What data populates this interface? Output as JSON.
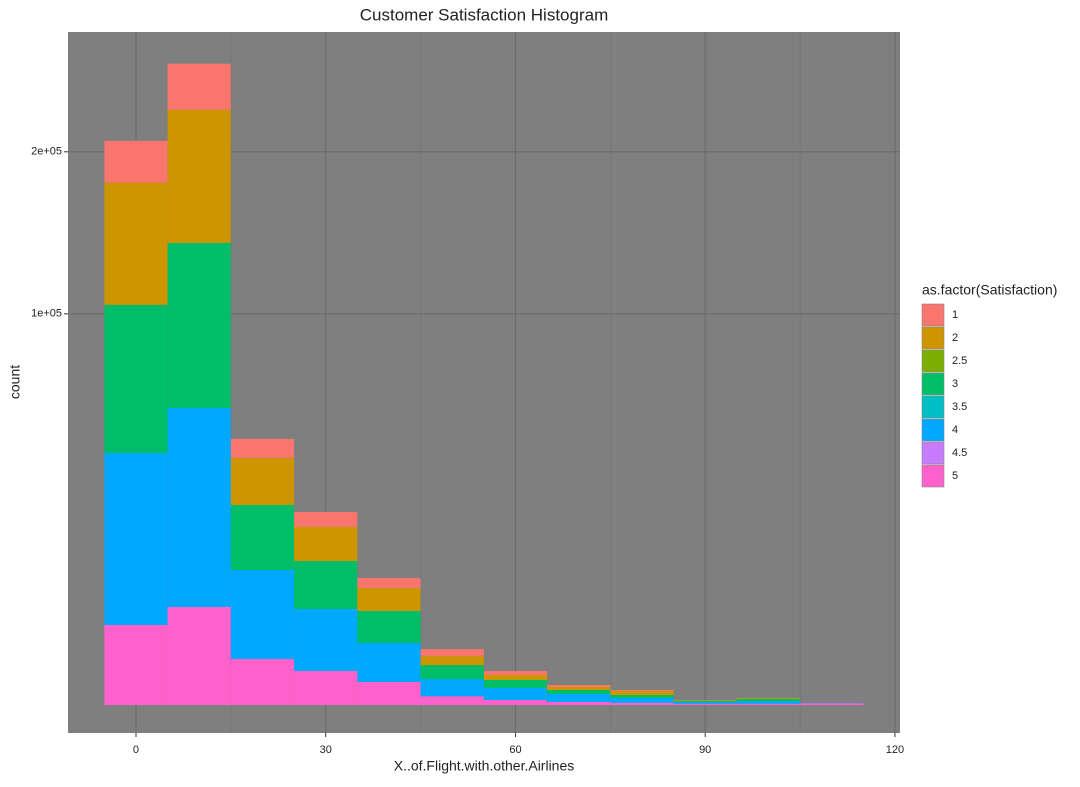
{
  "chart_data": {
    "type": "histogram",
    "title": "Customer Satisfaction Histogram",
    "x_label": "X..of.Flight.with.other.Airlines",
    "y_label": "count",
    "legend_title": "as.factor(Satisfaction)",
    "legend_position": "right",
    "y_scale": "sqrt",
    "stacked": true,
    "grid": true,
    "bins": [
      -5,
      5,
      15,
      25,
      35,
      45,
      55,
      65,
      75,
      85,
      95,
      105,
      115
    ],
    "xlim": [
      -10.75,
      120.8
    ],
    "xticks": [
      0,
      30,
      60,
      90,
      120
    ],
    "ylim": [
      0,
      296000
    ],
    "yticks": [
      {
        "value": 100000,
        "label": "1e+05"
      },
      {
        "value": 200000,
        "label": "2e+05"
      }
    ],
    "series": [
      {
        "name": "1",
        "color": "#F8766D",
        "values": [
          29780,
          37190,
          6380,
          3640,
          1600,
          480,
          167,
          50,
          19,
          0,
          0,
          0
        ]
      },
      {
        "name": "2",
        "color": "#CD9600",
        "values": [
          73600,
          91960,
          13740,
          7160,
          3170,
          520,
          180,
          65,
          63,
          5,
          9,
          0
        ]
      },
      {
        "name": "2.5",
        "color": "#7CAE00",
        "values": [
          0,
          0,
          0,
          0,
          0,
          0,
          0,
          0,
          0,
          0,
          0,
          0
        ]
      },
      {
        "name": "3",
        "color": "#00BE67",
        "values": [
          63120,
          81890,
          14240,
          7530,
          3270,
          600,
          220,
          68,
          33,
          5,
          14,
          0
        ]
      },
      {
        "name": "3.5",
        "color": "#00BFC4",
        "values": [
          0,
          0,
          0,
          0,
          0,
          0,
          0,
          0,
          0,
          0,
          0,
          0
        ]
      },
      {
        "name": "4",
        "color": "#00A9FF",
        "values": [
          37350,
          51410,
          10540,
          5270,
          2160,
          390,
          173,
          73,
          29,
          5,
          9,
          1
        ]
      },
      {
        "name": "4.5",
        "color": "#C77CFF",
        "values": [
          0,
          0,
          0,
          0,
          0,
          0,
          0,
          0,
          0,
          0,
          0,
          0
        ]
      },
      {
        "name": "5",
        "color": "#FF61CC",
        "values": [
          4190,
          6280,
          1380,
          760,
          350,
          50,
          16,
          6,
          3,
          1,
          1,
          2
        ]
      }
    ]
  }
}
